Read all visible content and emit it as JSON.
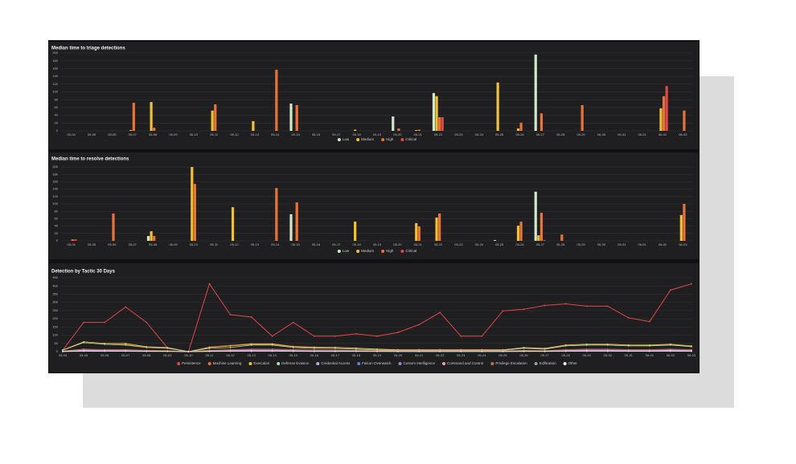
{
  "chart_data": [
    {
      "type": "bar",
      "title": "Median time to triage detections",
      "categories": [
        "05-04",
        "05-05",
        "05-06",
        "05-07",
        "05-08",
        "05-09",
        "05-10",
        "05-11",
        "05-12",
        "05-13",
        "05-14",
        "05-15",
        "05-16",
        "05-17",
        "05-18",
        "05-19",
        "05-20",
        "05-21",
        "05-22",
        "05-23",
        "05-24",
        "05-25",
        "05-26",
        "05-27",
        "05-28",
        "05-29",
        "05-30",
        "05-31",
        "06-01",
        "06-02",
        "06-03"
      ],
      "ylim": [
        0,
        200
      ],
      "yticks": [
        0,
        20,
        40,
        60,
        80,
        100,
        120,
        140,
        160,
        180,
        200
      ],
      "grid": true,
      "series": [
        {
          "name": "Low",
          "color": "#cfe8c8",
          "values": [
            0,
            0,
            0,
            0,
            0,
            0,
            0,
            0,
            0,
            0,
            0,
            70,
            0,
            0,
            0,
            0,
            37,
            0,
            97,
            0,
            0,
            0,
            0,
            196,
            0,
            0,
            0,
            0,
            0,
            0,
            0
          ]
        },
        {
          "name": "Medium",
          "color": "#f2c033",
          "values": [
            0,
            0,
            0,
            2,
            74,
            0,
            0,
            52,
            0,
            25,
            0,
            0,
            0,
            0,
            3,
            0,
            0,
            2,
            89,
            0,
            0,
            124,
            6,
            0,
            0,
            0,
            0,
            0,
            0,
            58,
            0
          ]
        },
        {
          "name": "High",
          "color": "#e8743b",
          "values": [
            0,
            0,
            0,
            72,
            8,
            0,
            0,
            68,
            0,
            0,
            157,
            66,
            0,
            0,
            0,
            0,
            6,
            3,
            35,
            0,
            0,
            0,
            21,
            45,
            0,
            66,
            0,
            0,
            0,
            89,
            52
          ]
        },
        {
          "name": "Critical",
          "color": "#e04848",
          "values": [
            0,
            0,
            0,
            0,
            0,
            0,
            0,
            0,
            0,
            0,
            0,
            0,
            0,
            0,
            0,
            0,
            0,
            0,
            35,
            0,
            0,
            0,
            0,
            0,
            0,
            0,
            0,
            0,
            0,
            115,
            0
          ]
        }
      ]
    },
    {
      "type": "bar",
      "title": "Median time to resolve detections",
      "categories": [
        "05-04",
        "05-05",
        "05-06",
        "05-07",
        "05-08",
        "05-09",
        "05-10",
        "05-11",
        "05-12",
        "05-13",
        "05-14",
        "05-15",
        "05-16",
        "05-17",
        "05-18",
        "05-19",
        "05-20",
        "05-21",
        "05-22",
        "05-23",
        "05-24",
        "05-25",
        "05-26",
        "05-27",
        "05-28",
        "05-29",
        "05-30",
        "05-31",
        "06-01",
        "06-02",
        "06-03"
      ],
      "ylim": [
        0,
        200
      ],
      "yticks": [
        0,
        20,
        40,
        60,
        80,
        100,
        120,
        140,
        160,
        180,
        200
      ],
      "grid": true,
      "series": [
        {
          "name": "Low",
          "color": "#cfe8c8",
          "values": [
            0,
            0,
            0,
            0,
            13,
            0,
            0,
            0,
            0,
            0,
            0,
            72,
            0,
            0,
            0,
            0,
            0,
            0,
            0,
            0,
            0,
            2,
            0,
            133,
            0,
            0,
            0,
            0,
            0,
            0,
            0
          ]
        },
        {
          "name": "Medium",
          "color": "#f2c033",
          "values": [
            0,
            0,
            0,
            0,
            26,
            0,
            200,
            0,
            91,
            0,
            0,
            0,
            0,
            0,
            52,
            0,
            0,
            48,
            63,
            0,
            0,
            0,
            41,
            15,
            0,
            0,
            0,
            0,
            0,
            0,
            70
          ]
        },
        {
          "name": "High",
          "color": "#e8743b",
          "values": [
            4,
            0,
            74,
            0,
            13,
            0,
            154,
            0,
            0,
            0,
            143,
            104,
            0,
            0,
            0,
            0,
            0,
            39,
            74,
            0,
            0,
            0,
            52,
            76,
            17,
            0,
            0,
            0,
            0,
            0,
            100
          ]
        },
        {
          "name": "Critical",
          "color": "#e04848",
          "values": [
            4,
            0,
            0,
            0,
            0,
            0,
            0,
            0,
            0,
            0,
            0,
            0,
            0,
            0,
            0,
            0,
            0,
            0,
            0,
            0,
            0,
            0,
            0,
            2,
            0,
            0,
            0,
            0,
            0,
            0,
            0
          ]
        }
      ]
    },
    {
      "type": "line",
      "title": "Detection by Tactic 30 Days",
      "categories": [
        "05-04",
        "05-05",
        "05-06",
        "05-07",
        "05-08",
        "05-09",
        "05-10",
        "05-11",
        "05-12",
        "05-13",
        "05-14",
        "05-15",
        "05-16",
        "05-17",
        "05-18",
        "05-19",
        "05-20",
        "05-21",
        "05-22",
        "05-23",
        "05-24",
        "05-25",
        "05-26",
        "05-27",
        "05-28",
        "05-29",
        "05-30",
        "05-31",
        "06-01",
        "06-02",
        "06-03"
      ],
      "ylim": [
        0,
        450
      ],
      "yticks": [
        0,
        50,
        100,
        150,
        200,
        250,
        300,
        350,
        400,
        450
      ],
      "grid": true,
      "series": [
        {
          "name": "Persistence",
          "color": "#e04848",
          "values": [
            9,
            178,
            178,
            272,
            178,
            23,
            0,
            413,
            225,
            211,
            94,
            178,
            94,
            94,
            108,
            94,
            117,
            164,
            239,
            94,
            94,
            248,
            258,
            281,
            291,
            277,
            277,
            206,
            183,
            375,
            413
          ]
        },
        {
          "name": "Machine Learning",
          "color": "#e8743b",
          "values": [
            8,
            55,
            45,
            45,
            28,
            22,
            0,
            28,
            38,
            48,
            48,
            32,
            28,
            26,
            22,
            16,
            12,
            12,
            12,
            12,
            12,
            12,
            22,
            18,
            36,
            40,
            44,
            40,
            38,
            42,
            32
          ]
        },
        {
          "name": "Execution",
          "color": "#f2c033",
          "values": [
            10,
            60,
            50,
            50,
            30,
            25,
            0,
            25,
            35,
            45,
            45,
            30,
            25,
            25,
            20,
            15,
            10,
            10,
            10,
            10,
            10,
            10,
            25,
            20,
            40,
            45,
            45,
            40,
            40,
            45,
            35
          ]
        },
        {
          "name": "Defense Evasion",
          "color": "#a8e0b0",
          "values": [
            10,
            55,
            45,
            40,
            25,
            20,
            0,
            20,
            25,
            40,
            40,
            25,
            20,
            20,
            15,
            10,
            8,
            8,
            8,
            8,
            8,
            8,
            20,
            15,
            35,
            40,
            40,
            35,
            35,
            40,
            30
          ]
        },
        {
          "name": "Credential Access",
          "color": "#9fb6f0",
          "values": [
            2,
            6,
            5,
            5,
            4,
            3,
            0,
            4,
            5,
            6,
            6,
            5,
            4,
            4,
            3,
            3,
            2,
            2,
            2,
            2,
            2,
            2,
            4,
            3,
            5,
            6,
            6,
            5,
            5,
            6,
            5
          ]
        },
        {
          "name": "Falcon Overwatch",
          "color": "#5a7de8",
          "values": [
            1,
            3,
            3,
            3,
            2,
            2,
            0,
            2,
            3,
            3,
            3,
            2,
            2,
            2,
            2,
            1,
            1,
            1,
            1,
            1,
            1,
            1,
            2,
            2,
            3,
            3,
            3,
            3,
            3,
            3,
            2
          ]
        },
        {
          "name": "Custom Intelligence",
          "color": "#b07ae8",
          "values": [
            3,
            10,
            8,
            8,
            6,
            5,
            0,
            6,
            8,
            10,
            10,
            8,
            6,
            6,
            5,
            5,
            4,
            4,
            4,
            4,
            4,
            4,
            6,
            5,
            8,
            10,
            10,
            8,
            8,
            10,
            8
          ]
        },
        {
          "name": "Command and Control",
          "color": "#f0a0b8",
          "values": [
            2,
            5,
            4,
            4,
            3,
            3,
            0,
            3,
            4,
            5,
            5,
            4,
            3,
            3,
            3,
            2,
            2,
            2,
            2,
            2,
            2,
            2,
            3,
            3,
            4,
            5,
            5,
            4,
            4,
            5,
            4
          ]
        },
        {
          "name": "Privilege Escalation",
          "color": "#c0704a",
          "values": [
            4,
            15,
            12,
            12,
            8,
            6,
            0,
            8,
            12,
            15,
            15,
            12,
            10,
            10,
            8,
            6,
            5,
            5,
            5,
            5,
            5,
            5,
            8,
            6,
            12,
            15,
            15,
            12,
            12,
            15,
            12
          ]
        },
        {
          "name": "Exfiltration",
          "color": "#9a9a9a",
          "values": [
            1,
            2,
            2,
            2,
            1,
            1,
            0,
            1,
            2,
            2,
            2,
            2,
            1,
            1,
            1,
            1,
            1,
            1,
            1,
            1,
            1,
            1,
            1,
            1,
            2,
            2,
            2,
            2,
            2,
            2,
            2
          ]
        },
        {
          "name": "Other",
          "color": "#f4f4f4",
          "values": [
            1,
            4,
            3,
            3,
            2,
            2,
            0,
            2,
            3,
            4,
            4,
            3,
            2,
            2,
            2,
            2,
            1,
            1,
            1,
            1,
            1,
            1,
            2,
            2,
            3,
            4,
            4,
            3,
            3,
            4,
            3
          ]
        }
      ]
    }
  ]
}
